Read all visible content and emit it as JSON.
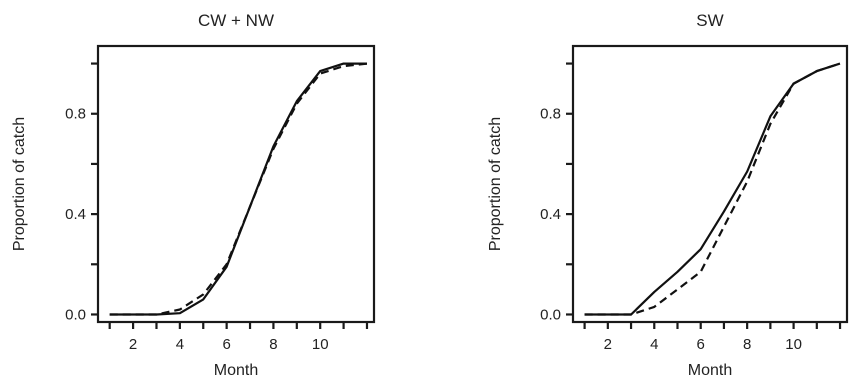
{
  "chart_data": [
    {
      "type": "line",
      "title": "CW + NW",
      "xlabel": "Month",
      "ylabel": "Proportion of catch",
      "xlim": [
        0.5,
        12.3
      ],
      "ylim": [
        -0.03,
        1.07
      ],
      "xticks": [
        1,
        2,
        3,
        4,
        5,
        6,
        7,
        8,
        9,
        10,
        11,
        12
      ],
      "xtick_labels": [
        "2",
        "4",
        "6",
        "8",
        "10"
      ],
      "xtick_label_values": [
        2,
        4,
        6,
        8,
        10
      ],
      "yticks": [
        0,
        0.2,
        0.4,
        0.6,
        0.8,
        1.0
      ],
      "ytick_labels": [
        "0.0",
        "0.4",
        "0.8"
      ],
      "ytick_label_values": [
        0,
        0.4,
        0.8
      ],
      "grid": false,
      "legend": "none",
      "series": [
        {
          "style": "solid",
          "x": [
            1,
            2,
            3,
            4,
            5,
            6,
            7,
            8,
            9,
            10,
            11,
            12
          ],
          "y": [
            0,
            0,
            0,
            0.005,
            0.06,
            0.19,
            0.43,
            0.67,
            0.85,
            0.97,
            1.0,
            1.0
          ]
        },
        {
          "style": "dashed",
          "x": [
            1,
            2,
            3,
            4,
            5,
            6,
            7,
            8,
            9,
            10,
            11,
            12
          ],
          "y": [
            0,
            0,
            0,
            0.02,
            0.08,
            0.2,
            0.43,
            0.66,
            0.84,
            0.96,
            0.99,
            1.0
          ]
        }
      ]
    },
    {
      "type": "line",
      "title": "SW",
      "xlabel": "Month",
      "ylabel": "Proportion of catch",
      "xlim": [
        0.5,
        12.3
      ],
      "ylim": [
        -0.03,
        1.07
      ],
      "xticks": [
        1,
        2,
        3,
        4,
        5,
        6,
        7,
        8,
        9,
        10,
        11,
        12
      ],
      "xtick_labels": [
        "2",
        "4",
        "6",
        "8",
        "10"
      ],
      "xtick_label_values": [
        2,
        4,
        6,
        8,
        10
      ],
      "yticks": [
        0,
        0.2,
        0.4,
        0.6,
        0.8,
        1.0
      ],
      "ytick_labels": [
        "0.0",
        "0.4",
        "0.8"
      ],
      "ytick_label_values": [
        0,
        0.4,
        0.8
      ],
      "grid": false,
      "legend": "none",
      "series": [
        {
          "style": "solid",
          "x": [
            1,
            2,
            3,
            4,
            5,
            6,
            7,
            8,
            9,
            10,
            11,
            12
          ],
          "y": [
            0,
            0,
            0,
            0.09,
            0.17,
            0.26,
            0.41,
            0.57,
            0.79,
            0.92,
            0.97,
            1.0
          ]
        },
        {
          "style": "dashed",
          "x": [
            1,
            2,
            3,
            4,
            5,
            6,
            7,
            8,
            9,
            10,
            11,
            12
          ],
          "y": [
            0,
            0,
            0,
            0.03,
            0.1,
            0.17,
            0.35,
            0.53,
            0.76,
            0.92,
            0.97,
            1.0
          ]
        }
      ]
    }
  ]
}
